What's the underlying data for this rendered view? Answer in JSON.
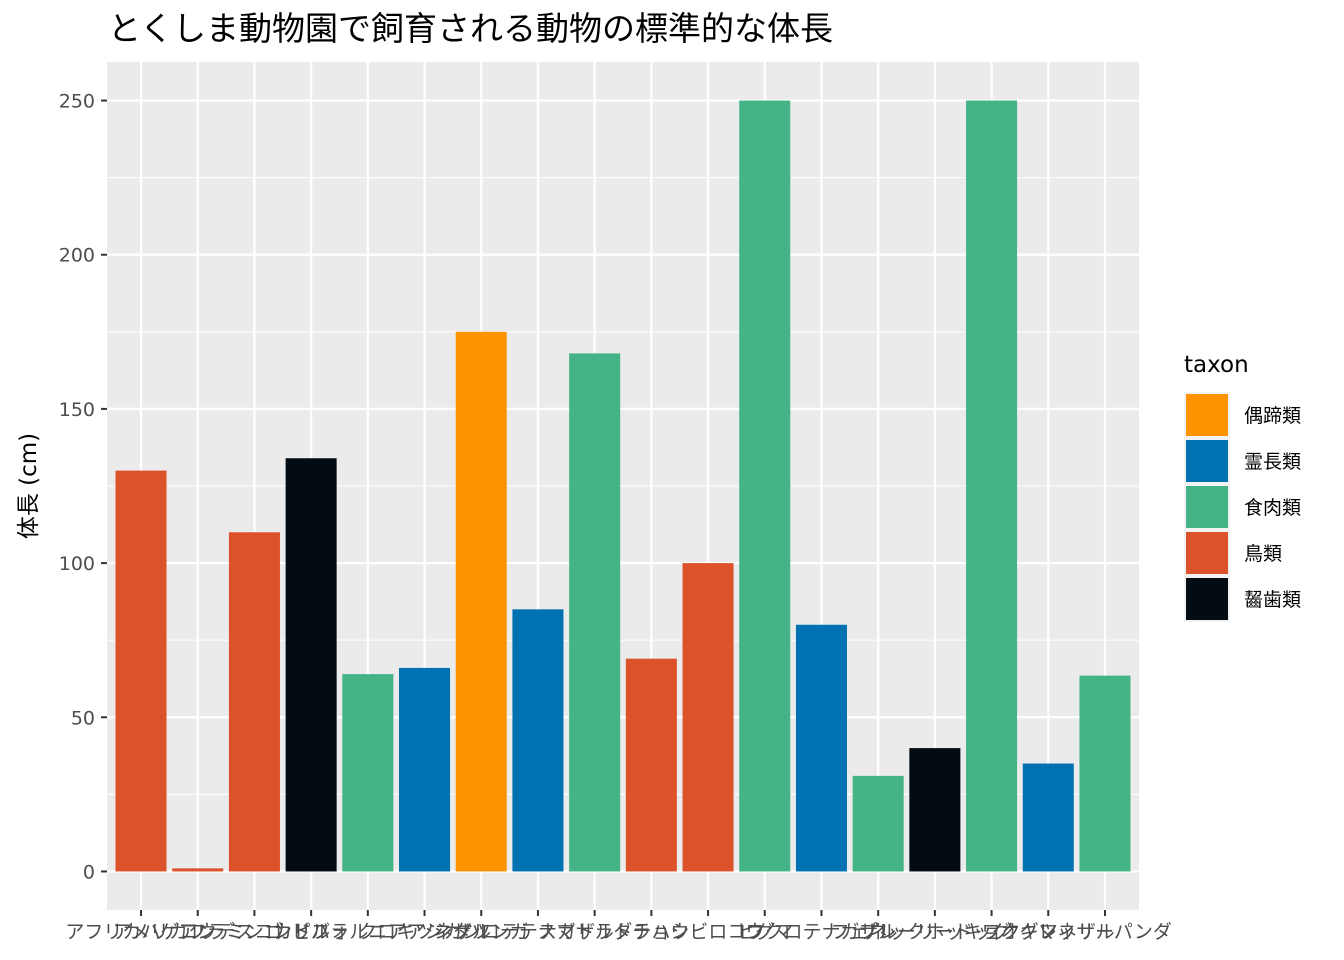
{
  "chart_data": {
    "type": "bar",
    "title": "とくしま動物園で飼育される動物の標準的な体長",
    "xlabel": "",
    "ylabel": "体長 (cm)",
    "ylim": [
      -12.5,
      262.5
    ],
    "yticks": [
      0,
      50,
      100,
      150,
      200,
      250
    ],
    "grid": true,
    "legend_position": "right",
    "legend_title": "taxon",
    "legend": [
      {
        "name": "偶蹄類",
        "color": "#FF9400"
      },
      {
        "name": "霊長類",
        "color": "#0072B2"
      },
      {
        "name": "食肉類",
        "color": "#44B487"
      },
      {
        "name": "鳥類",
        "color": "#DC522A"
      },
      {
        "name": "齧歯類",
        "color": "#030B13"
      }
    ],
    "categories": [
      "アフリカハゲコウ",
      "アメリカフラミンゴ",
      "アンデスコンドル",
      "カピバラ",
      "カリフォルニアアシカ",
      "クロキツネザル",
      "シタツンガ",
      "シロテテナガザル",
      "スマトラトラ",
      "ダチョウ",
      "ハシビロコウ",
      "ヒグマ",
      "フクロテナガザル",
      "フェネック",
      "プレーリードッグ",
      "ホッキョクグマ",
      "ワオキツネザル",
      "レッサーパンダ"
    ],
    "values": [
      130,
      1,
      110,
      134,
      64,
      66,
      175,
      85,
      168,
      69,
      100,
      250,
      80,
      31,
      40,
      250,
      35,
      63.5
    ],
    "taxa": [
      "鳥類",
      "鳥類",
      "鳥類",
      "齧歯類",
      "食肉類",
      "霊長類",
      "偶蹄類",
      "霊長類",
      "食肉類",
      "鳥類",
      "鳥類",
      "食肉類",
      "霊長類",
      "食肉類",
      "齧歯類",
      "食肉類",
      "霊長類",
      "食肉類"
    ]
  }
}
